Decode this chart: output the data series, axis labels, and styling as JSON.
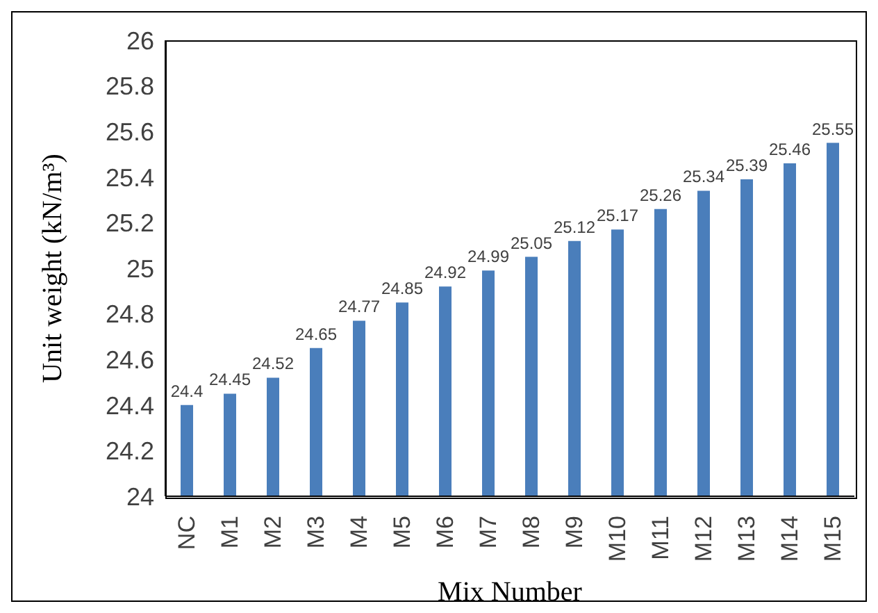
{
  "chart_data": {
    "type": "bar",
    "xlabel": "Mix Number",
    "ylabel": "Unit weight (kN/m³)",
    "categories": [
      "NC",
      "M1",
      "M2",
      "M3",
      "M4",
      "M5",
      "M6",
      "M7",
      "M8",
      "M9",
      "M10",
      "M11",
      "M12",
      "M13",
      "M14",
      "M15"
    ],
    "values": [
      24.4,
      24.45,
      24.52,
      24.65,
      24.77,
      24.85,
      24.92,
      24.99,
      25.05,
      25.12,
      25.17,
      25.26,
      25.34,
      25.39,
      25.46,
      25.55
    ],
    "color": "#4a7ebb",
    "ylim": [
      24,
      26
    ],
    "yticks": [
      24,
      24.2,
      24.4,
      24.6,
      24.8,
      25,
      25.2,
      25.4,
      25.6,
      25.8,
      26
    ],
    "grid": false,
    "legend": false,
    "data_labels": true
  }
}
